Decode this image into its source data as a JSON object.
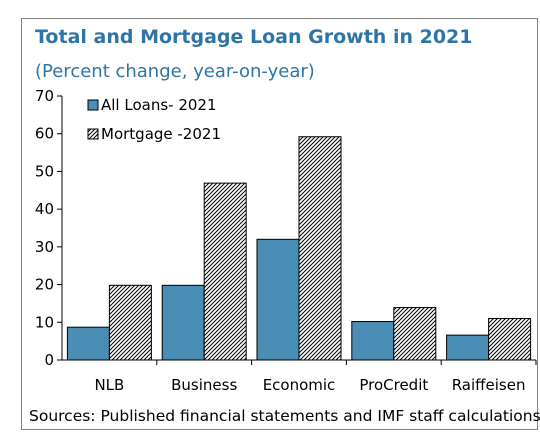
{
  "title": "Total and Mortgage Loan Growth in 2021",
  "subtitle": "(Percent change, year-on-year)",
  "source": "Sources: Published financial statements and IMF staff calculations",
  "colors": {
    "accent": "#2e75a6",
    "all_loans": "#4a8db5",
    "mortgage_hatch": "#000000"
  },
  "chart_data": {
    "type": "bar",
    "title": "Total and Mortgage Loan Growth in 2021",
    "subtitle": "(Percent change, year-on-year)",
    "categories": [
      "NLB",
      "Business",
      "Economic",
      "ProCredit",
      "Raiffeisen"
    ],
    "series": [
      {
        "name": "All Loans- 2021",
        "values": [
          8.7,
          19.8,
          32.0,
          10.2,
          6.6
        ]
      },
      {
        "name": "Mortgage -2021",
        "values": [
          19.8,
          46.9,
          59.2,
          13.9,
          11.0
        ]
      }
    ],
    "ylim": [
      0,
      70
    ],
    "yticks": [
      0,
      10,
      20,
      30,
      40,
      50,
      60,
      70
    ],
    "grid": false,
    "legend": "top-left",
    "xlabel": "",
    "ylabel": ""
  }
}
